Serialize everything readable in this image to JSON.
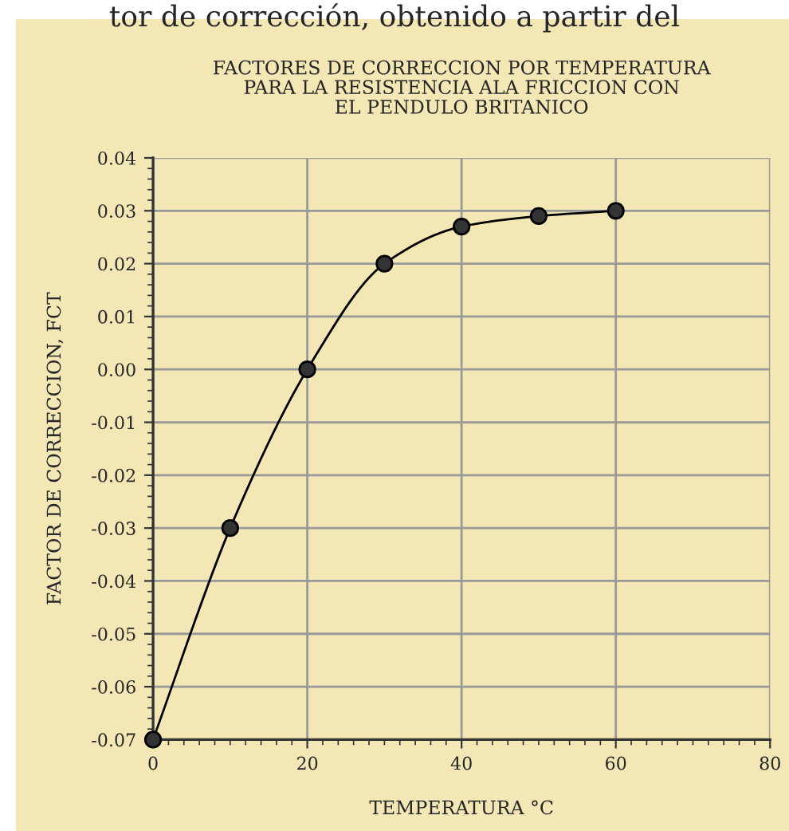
{
  "chart_data": {
    "type": "line",
    "title": "FACTORES DE CORRECCION POR TEMPERATURA\nPARA LA RESISTENCIA ALA FRICCION CON\nEL PENDULO BRITANICO",
    "xlabel": "TEMPERATURA °C",
    "ylabel": "FACTOR DE CORRECCION, FCT",
    "annotations": [
      "tor de corrección, obtenido a partir del"
    ],
    "x": [
      0,
      10,
      20,
      30,
      40,
      50,
      60
    ],
    "series": [
      {
        "color": "#000000",
        "values": [
          -0.07,
          -0.03,
          0.0,
          0.02,
          0.027,
          0.029,
          0.03
        ]
      }
    ],
    "xlim": [
      0,
      80
    ],
    "xticks": [
      0,
      20,
      40,
      60,
      80
    ],
    "ylim": [
      -0.07,
      0.04
    ],
    "yticks": [
      {
        "value": -0.07,
        "label": "-0.07"
      },
      {
        "value": -0.06,
        "label": "-0.06"
      },
      {
        "value": -0.05,
        "label": "-0.05"
      },
      {
        "value": -0.04,
        "label": "-0.04"
      },
      {
        "value": -0.03,
        "label": "-0.03"
      },
      {
        "value": -0.02,
        "label": "-0.02"
      },
      {
        "value": -0.01,
        "label": "-0.01"
      },
      {
        "value": 0,
        "label": "0.00"
      },
      {
        "value": 0.01,
        "label": "0.01"
      },
      {
        "value": 0.02,
        "label": "0.02"
      },
      {
        "value": 0.03,
        "label": "0.03"
      },
      {
        "value": 0.04,
        "label": "0.04"
      }
    ],
    "grid": true,
    "marker": "circle",
    "line_style": "solid"
  }
}
